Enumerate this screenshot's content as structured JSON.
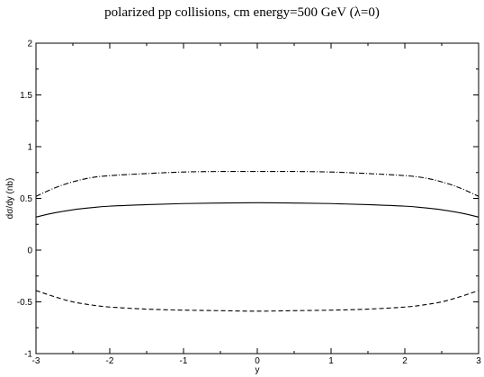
{
  "chart_data": {
    "type": "line",
    "title": "polarized pp collisions, cm energy=500 GeV (λ=0)",
    "xlabel": "y",
    "ylabel": "dσ/dy (nb)",
    "xlim": [
      -3,
      3
    ],
    "ylim": [
      -1,
      2
    ],
    "x_ticks": [
      -3,
      -2,
      -1,
      0,
      1,
      2,
      3
    ],
    "y_ticks": [
      -1,
      -0.5,
      0,
      0.5,
      1,
      1.5,
      2
    ],
    "x_tick_labels": [
      "-3",
      "-2",
      "-1",
      "0",
      "1",
      "2",
      "3"
    ],
    "y_tick_labels": [
      "-1",
      "-0.5",
      "0",
      "0.5",
      "1",
      "1.5",
      "2"
    ],
    "grid": false,
    "legend": "none",
    "series": [
      {
        "style": "solid",
        "x": [
          -3,
          -2.75,
          -2.5,
          -2.25,
          -2,
          -1.5,
          -1,
          -0.5,
          0,
          0.5,
          1,
          1.5,
          2,
          2.25,
          2.5,
          2.75,
          3
        ],
        "y": [
          0.32,
          0.36,
          0.39,
          0.41,
          0.425,
          0.44,
          0.45,
          0.455,
          0.458,
          0.455,
          0.45,
          0.44,
          0.425,
          0.41,
          0.39,
          0.36,
          0.32
        ]
      },
      {
        "style": "dashdot",
        "x": [
          -3,
          -2.75,
          -2.5,
          -2.25,
          -2,
          -1.5,
          -1,
          -0.5,
          0,
          0.5,
          1,
          1.5,
          2,
          2.25,
          2.5,
          2.75,
          3
        ],
        "y": [
          0.52,
          0.6,
          0.66,
          0.7,
          0.72,
          0.74,
          0.755,
          0.76,
          0.76,
          0.76,
          0.755,
          0.74,
          0.72,
          0.7,
          0.66,
          0.6,
          0.52
        ]
      },
      {
        "style": "dashed",
        "x": [
          -3,
          -2.75,
          -2.5,
          -2.25,
          -2,
          -1.5,
          -1,
          -0.5,
          0,
          0.5,
          1,
          1.5,
          2,
          2.25,
          2.5,
          2.75,
          3
        ],
        "y": [
          -0.39,
          -0.45,
          -0.5,
          -0.53,
          -0.55,
          -0.57,
          -0.58,
          -0.585,
          -0.59,
          -0.585,
          -0.58,
          -0.57,
          -0.55,
          -0.53,
          -0.5,
          -0.45,
          -0.39
        ]
      }
    ]
  }
}
